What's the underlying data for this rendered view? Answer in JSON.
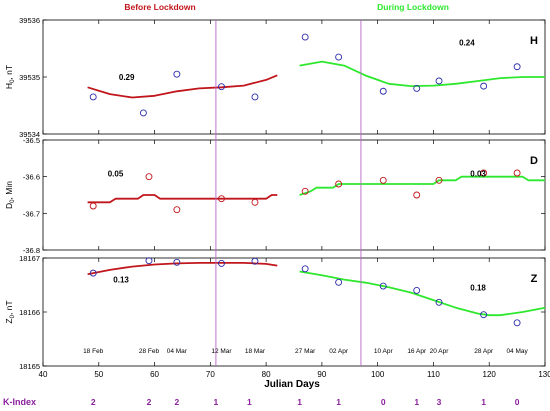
{
  "header": {
    "before_label": "Before Lockdown",
    "during_label": "During Lockdown",
    "before_color": "#c0161c",
    "during_color": "#2ee82e"
  },
  "x_axis": {
    "label": "Julian Days",
    "xlim": [
      40,
      130
    ],
    "ticks": [
      40,
      50,
      60,
      70,
      80,
      90,
      100,
      110,
      120,
      130
    ]
  },
  "vertical_markers": {
    "x": [
      71,
      97
    ],
    "color": "#b866c8"
  },
  "date_labels": [
    {
      "text": "18 Feb",
      "x": 49
    },
    {
      "text": "28 Feb",
      "x": 59
    },
    {
      "text": "04 Mar",
      "x": 64
    },
    {
      "text": "12 Mar",
      "x": 72
    },
    {
      "text": "18 Mar",
      "x": 78
    },
    {
      "text": "27 Mar",
      "x": 87
    },
    {
      "text": "02 Apr",
      "x": 93
    },
    {
      "text": "10 Apr",
      "x": 101
    },
    {
      "text": "16 Apr",
      "x": 107
    },
    {
      "text": "20 Apr",
      "x": 111
    },
    {
      "text": "28 Apr",
      "x": 119
    },
    {
      "text": "04 May",
      "x": 125
    }
  ],
  "k_index": {
    "label": "K-Index",
    "color": "#8a1f9c",
    "values": [
      {
        "text": "2",
        "x": 49
      },
      {
        "text": "2",
        "x": 59
      },
      {
        "text": "2",
        "x": 64
      },
      {
        "text": "1",
        "x": 71
      },
      {
        "text": "1",
        "x": 77
      },
      {
        "text": "1",
        "x": 86
      },
      {
        "text": "1",
        "x": 93
      },
      {
        "text": "0",
        "x": 101
      },
      {
        "text": "1",
        "x": 107
      },
      {
        "text": "3",
        "x": 111
      },
      {
        "text": "1",
        "x": 119
      },
      {
        "text": "0",
        "x": 125
      }
    ]
  },
  "chart_data": [
    {
      "type": "line",
      "panel": "H",
      "ylabel": "H0, nT",
      "ylim": [
        39534,
        39536
      ],
      "yticks": [
        39534,
        39535,
        39536
      ],
      "marker_color": "#2a2aa8",
      "before": {
        "correlation": "0.29",
        "points": [
          [
            49,
            39534.65
          ],
          [
            58,
            39534.37
          ],
          [
            64,
            39535.05
          ],
          [
            72,
            39534.83
          ],
          [
            78,
            39534.65
          ]
        ],
        "curve": [
          [
            48,
            39534.82
          ],
          [
            52,
            39534.7
          ],
          [
            56,
            39534.64
          ],
          [
            60,
            39534.67
          ],
          [
            64,
            39534.75
          ],
          [
            68,
            39534.8
          ],
          [
            72,
            39534.82
          ],
          [
            76,
            39534.85
          ],
          [
            80,
            39534.95
          ],
          [
            82,
            39535.03
          ]
        ]
      },
      "during": {
        "correlation": "0.24",
        "points": [
          [
            87,
            39535.7
          ],
          [
            93,
            39535.35
          ],
          [
            101,
            39534.75
          ],
          [
            107,
            39534.8
          ],
          [
            111,
            39534.93
          ],
          [
            119,
            39534.84
          ],
          [
            125,
            39535.18
          ]
        ],
        "curve": [
          [
            86,
            39535.2
          ],
          [
            90,
            39535.27
          ],
          [
            94,
            39535.2
          ],
          [
            98,
            39535.02
          ],
          [
            102,
            39534.88
          ],
          [
            106,
            39534.84
          ],
          [
            110,
            39534.85
          ],
          [
            114,
            39534.88
          ],
          [
            118,
            39534.93
          ],
          [
            122,
            39534.98
          ],
          [
            126,
            39535.0
          ],
          [
            130,
            39535.0
          ]
        ]
      }
    },
    {
      "type": "line",
      "panel": "D",
      "ylabel": "D0, Min",
      "ylim": [
        -36.8,
        -36.5
      ],
      "yticks": [
        -36.8,
        -36.7,
        -36.6,
        -36.5
      ],
      "marker_color": "#c0161c",
      "before": {
        "correlation": "0.05",
        "points": [
          [
            49,
            -36.68
          ],
          [
            59,
            -36.6
          ],
          [
            64,
            -36.69
          ],
          [
            72,
            -36.66
          ],
          [
            78,
            -36.67
          ]
        ],
        "curve": [
          [
            48,
            -36.67
          ],
          [
            52,
            -36.67
          ],
          [
            53,
            -36.66
          ],
          [
            57,
            -36.66
          ],
          [
            58,
            -36.65
          ],
          [
            60,
            -36.65
          ],
          [
            61,
            -36.66
          ],
          [
            80,
            -36.66
          ],
          [
            81,
            -36.65
          ],
          [
            82,
            -36.65
          ]
        ]
      },
      "during": {
        "correlation": "0.03",
        "points": [
          [
            87,
            -36.64
          ],
          [
            93,
            -36.62
          ],
          [
            101,
            -36.61
          ],
          [
            107,
            -36.65
          ],
          [
            111,
            -36.61
          ],
          [
            119,
            -36.59
          ],
          [
            125,
            -36.59
          ]
        ],
        "curve": [
          [
            86,
            -36.65
          ],
          [
            88,
            -36.64
          ],
          [
            89,
            -36.63
          ],
          [
            92,
            -36.63
          ],
          [
            93,
            -36.62
          ],
          [
            110,
            -36.62
          ],
          [
            111,
            -36.61
          ],
          [
            114,
            -36.61
          ],
          [
            115,
            -36.6
          ],
          [
            126,
            -36.6
          ],
          [
            127,
            -36.61
          ],
          [
            130,
            -36.61
          ]
        ]
      }
    },
    {
      "type": "line",
      "panel": "Z",
      "ylabel": "Z0, nT",
      "ylim": [
        18165,
        18167
      ],
      "yticks": [
        18165,
        18166,
        18167
      ],
      "marker_color": "#2a2aa8",
      "before": {
        "correlation": "0.13",
        "points": [
          [
            49,
            18166.72
          ],
          [
            59,
            18166.95
          ],
          [
            64,
            18166.92
          ],
          [
            72,
            18166.9
          ],
          [
            78,
            18166.94
          ]
        ],
        "curve": [
          [
            48,
            18166.7
          ],
          [
            52,
            18166.78
          ],
          [
            56,
            18166.84
          ],
          [
            60,
            18166.88
          ],
          [
            64,
            18166.9
          ],
          [
            68,
            18166.91
          ],
          [
            72,
            18166.91
          ],
          [
            76,
            18166.91
          ],
          [
            80,
            18166.89
          ],
          [
            82,
            18166.86
          ]
        ]
      },
      "during": {
        "correlation": "0.18",
        "points": [
          [
            87,
            18166.8
          ],
          [
            93,
            18166.55
          ],
          [
            101,
            18166.48
          ],
          [
            107,
            18166.4
          ],
          [
            111,
            18166.18
          ],
          [
            119,
            18165.95
          ],
          [
            125,
            18165.8
          ]
        ],
        "curve": [
          [
            86,
            18166.75
          ],
          [
            90,
            18166.68
          ],
          [
            94,
            18166.6
          ],
          [
            98,
            18166.54
          ],
          [
            102,
            18166.46
          ],
          [
            106,
            18166.36
          ],
          [
            110,
            18166.22
          ],
          [
            114,
            18166.08
          ],
          [
            118,
            18165.97
          ],
          [
            120,
            18165.94
          ],
          [
            122,
            18165.94
          ],
          [
            126,
            18166.0
          ],
          [
            130,
            18166.08
          ]
        ]
      }
    }
  ]
}
